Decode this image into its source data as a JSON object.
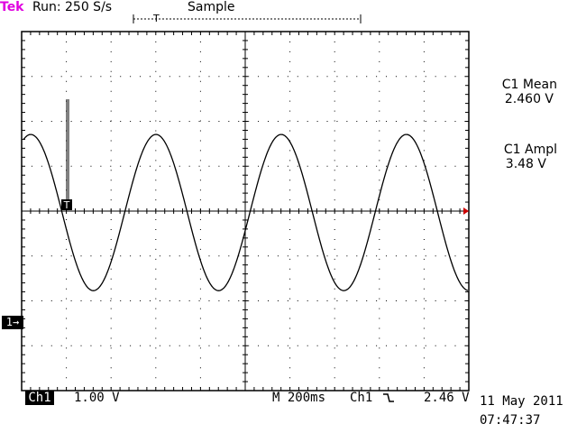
{
  "header": {
    "brand": "Tek",
    "run_status": "Run: 250 S/s",
    "acquisition_mode": "Sample"
  },
  "measurements": [
    {
      "label": "C1 Mean",
      "value": "2.460 V"
    },
    {
      "label": "C1 Ampl",
      "value": "3.48 V"
    }
  ],
  "footer": {
    "channel": "Ch1",
    "volts_per_div": "1.00 V",
    "timebase": "M 200ms",
    "trigger_source": "Ch1",
    "trigger_slope_icon": "falling-edge-icon",
    "trigger_level": "2.46 V",
    "date": "11 May 2011",
    "time": "07:47:37"
  },
  "channel_marker": "1→",
  "trigger_marker": "T",
  "colors": {
    "brand": "#e000e0",
    "trace": "#000000",
    "graticule": "#000000"
  },
  "waveform": {
    "type": "sine",
    "amplitude_V": 3.48,
    "mean_V": 2.46,
    "period_ms": 560,
    "volts_per_div": 1.0,
    "ms_per_div": 200
  }
}
